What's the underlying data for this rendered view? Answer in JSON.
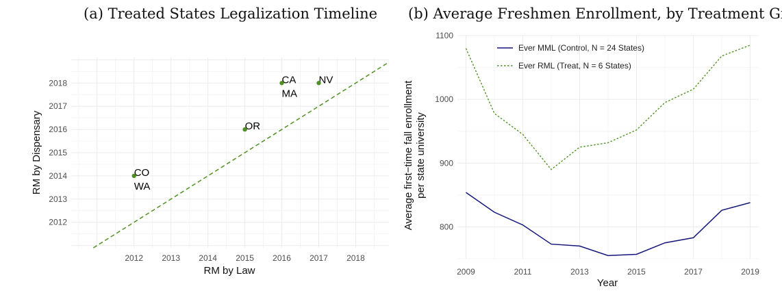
{
  "chart_data": [
    {
      "type": "scatter",
      "title": "(a) Treated States Legalization Timeline",
      "xlabel": "RM by Law",
      "ylabel": "RM by Dispensary",
      "xlim": [
        2010.3,
        2018.9
      ],
      "ylim": [
        2010.9,
        2019.1
      ],
      "x_ticks": [
        "2012",
        "2013",
        "2014",
        "2015",
        "2016",
        "2017",
        "2018"
      ],
      "y_ticks": [
        "2012",
        "2013",
        "2014",
        "2015",
        "2016",
        "2017",
        "2018"
      ],
      "points": [
        {
          "x": 2012,
          "y": 2014,
          "labels": [
            "CO",
            "WA"
          ]
        },
        {
          "x": 2015,
          "y": 2016,
          "labels": [
            "OR"
          ]
        },
        {
          "x": 2016,
          "y": 2018,
          "labels": [
            "CA",
            "MA"
          ]
        },
        {
          "x": 2017,
          "y": 2018,
          "labels": [
            "NV"
          ]
        }
      ],
      "reference_line": {
        "type": "y=x",
        "style": "dashed",
        "color": "#4f8f23"
      },
      "point_color": "#4f8f23",
      "grid": true
    },
    {
      "type": "line",
      "title": "(b) Average Freshmen Enrollment, by Treatment Group",
      "xlabel": "Year",
      "ylabel_lines": [
        "Average first−time fall enrollment",
        "per state university"
      ],
      "xlim": [
        2008.7,
        2019.3
      ],
      "ylim": [
        750,
        1100
      ],
      "x_ticks": [
        "2009",
        "2011",
        "2013",
        "2015",
        "2017",
        "2019"
      ],
      "y_ticks": [
        "800",
        "900",
        "1000",
        "1100"
      ],
      "x": [
        2009,
        2010,
        2011,
        2012,
        2013,
        2014,
        2015,
        2016,
        2017,
        2018,
        2019
      ],
      "series": [
        {
          "name": "Ever MML (Control, N = 24 States)",
          "style": "solid",
          "color": "#14157a",
          "values": [
            854,
            823,
            803,
            773,
            770,
            755,
            757,
            775,
            783,
            826,
            838
          ]
        },
        {
          "name": "Ever RML (Treat, N = 6 States)",
          "style": "dotted",
          "color": "#4f8f23",
          "values": [
            1080,
            978,
            945,
            890,
            925,
            932,
            952,
            995,
            1016,
            1068,
            1085
          ]
        }
      ],
      "legend_position": "top-left",
      "grid": true
    }
  ]
}
